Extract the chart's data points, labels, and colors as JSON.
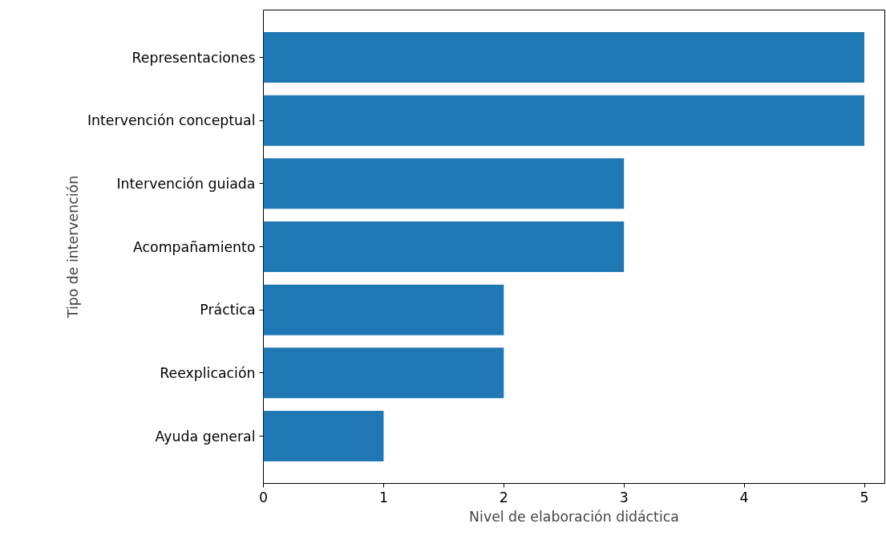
{
  "chart_data": {
    "type": "bar",
    "orientation": "horizontal",
    "xlabel": "Nivel de elaboración didáctica",
    "ylabel": "Tipo de intervención",
    "categories": [
      "Representaciones",
      "Intervención conceptual",
      "Intervención guiada",
      "Acompañamiento",
      "Práctica",
      "Reexplicación",
      "Ayuda general"
    ],
    "values": [
      5,
      5,
      3,
      3,
      2,
      2,
      1
    ],
    "color": "#1f77b4",
    "xlim": [
      0,
      5.17
    ],
    "xticks": [
      0,
      1,
      2,
      3,
      4,
      5
    ],
    "grid": false
  }
}
